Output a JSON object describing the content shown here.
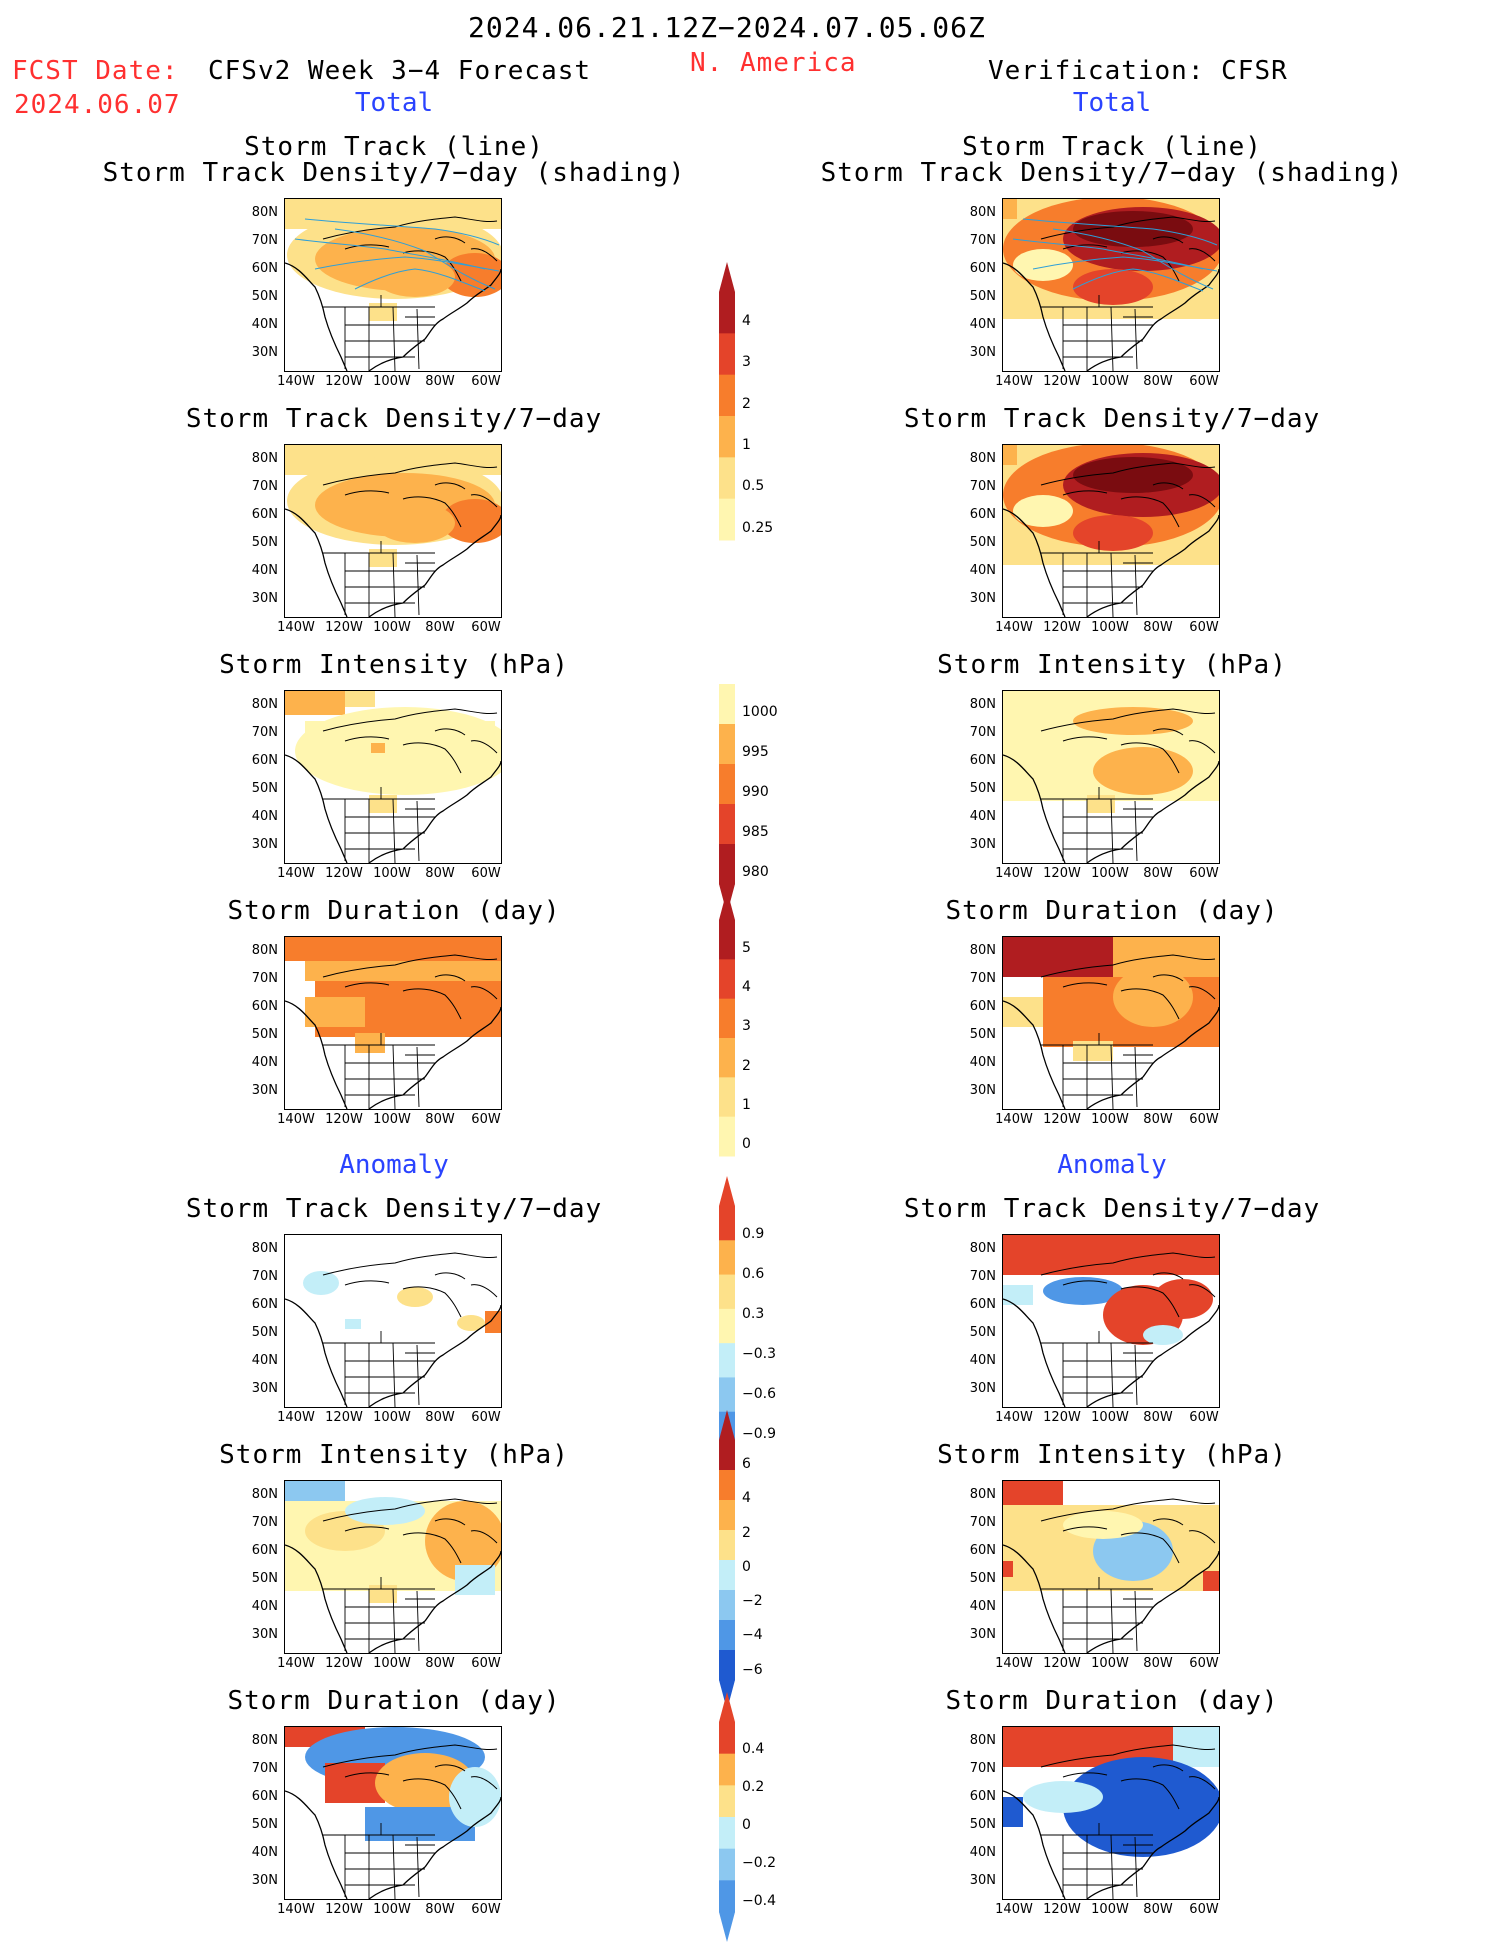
{
  "header": {
    "date_range": "2024.06.21.12Z−2024.07.05.06Z",
    "region": "N. America",
    "fcst_label": "FCST Date:",
    "fcst_date": "2024.06.07",
    "left_title": "CFSv2 Week 3−4 Forecast",
    "right_title": "Verification: CFSR",
    "left_total": "Total",
    "right_total": "Total",
    "left_anomaly": "Anomaly",
    "right_anomaly": "Anomaly"
  },
  "panel_titles": {
    "track_line": "Storm Track (line)",
    "track_density_shading": "Storm Track Density/7−day (shading)",
    "track_density": "Storm Track Density/7−day",
    "intensity": "Storm Intensity (hPa)",
    "duration": "Storm Duration (day)"
  },
  "axes": {
    "lat_ticks": [
      "80N",
      "70N",
      "60N",
      "50N",
      "40N",
      "30N"
    ],
    "lon_ticks": [
      "140W",
      "120W",
      "100W",
      "80W",
      "60W"
    ]
  },
  "colorbars": {
    "density_total": [
      "4",
      "3",
      "2",
      "1",
      "0.5",
      "0.25"
    ],
    "intensity_total": [
      "1000",
      "995",
      "990",
      "985",
      "980"
    ],
    "duration_total": [
      "5",
      "4",
      "3",
      "2",
      "1",
      "0"
    ],
    "density_anomaly": [
      "0.9",
      "0.6",
      "0.3",
      "−0.3",
      "−0.6",
      "−0.9"
    ],
    "intensity_anomaly": [
      "6",
      "4",
      "2",
      "0",
      "−2",
      "−4",
      "−6"
    ],
    "duration_anomaly": [
      "0.4",
      "0.2",
      "0",
      "−0.2",
      "−0.4"
    ]
  },
  "colors": {
    "level_1": "#fff6b0",
    "level_2": "#fde18a",
    "level_3": "#fdb24c",
    "level_4": "#f77d2c",
    "level_5": "#e4442a",
    "level_6": "#b01d20",
    "level_7": "#7a0c10",
    "neg_1": "#c3eef8",
    "neg_2": "#8cc8f0",
    "neg_3": "#4f97e6",
    "neg_4": "#1f5ad0",
    "track_line": "#2e9fd8",
    "title_red": "#ff3030",
    "title_blue": "#2a43ff"
  }
}
